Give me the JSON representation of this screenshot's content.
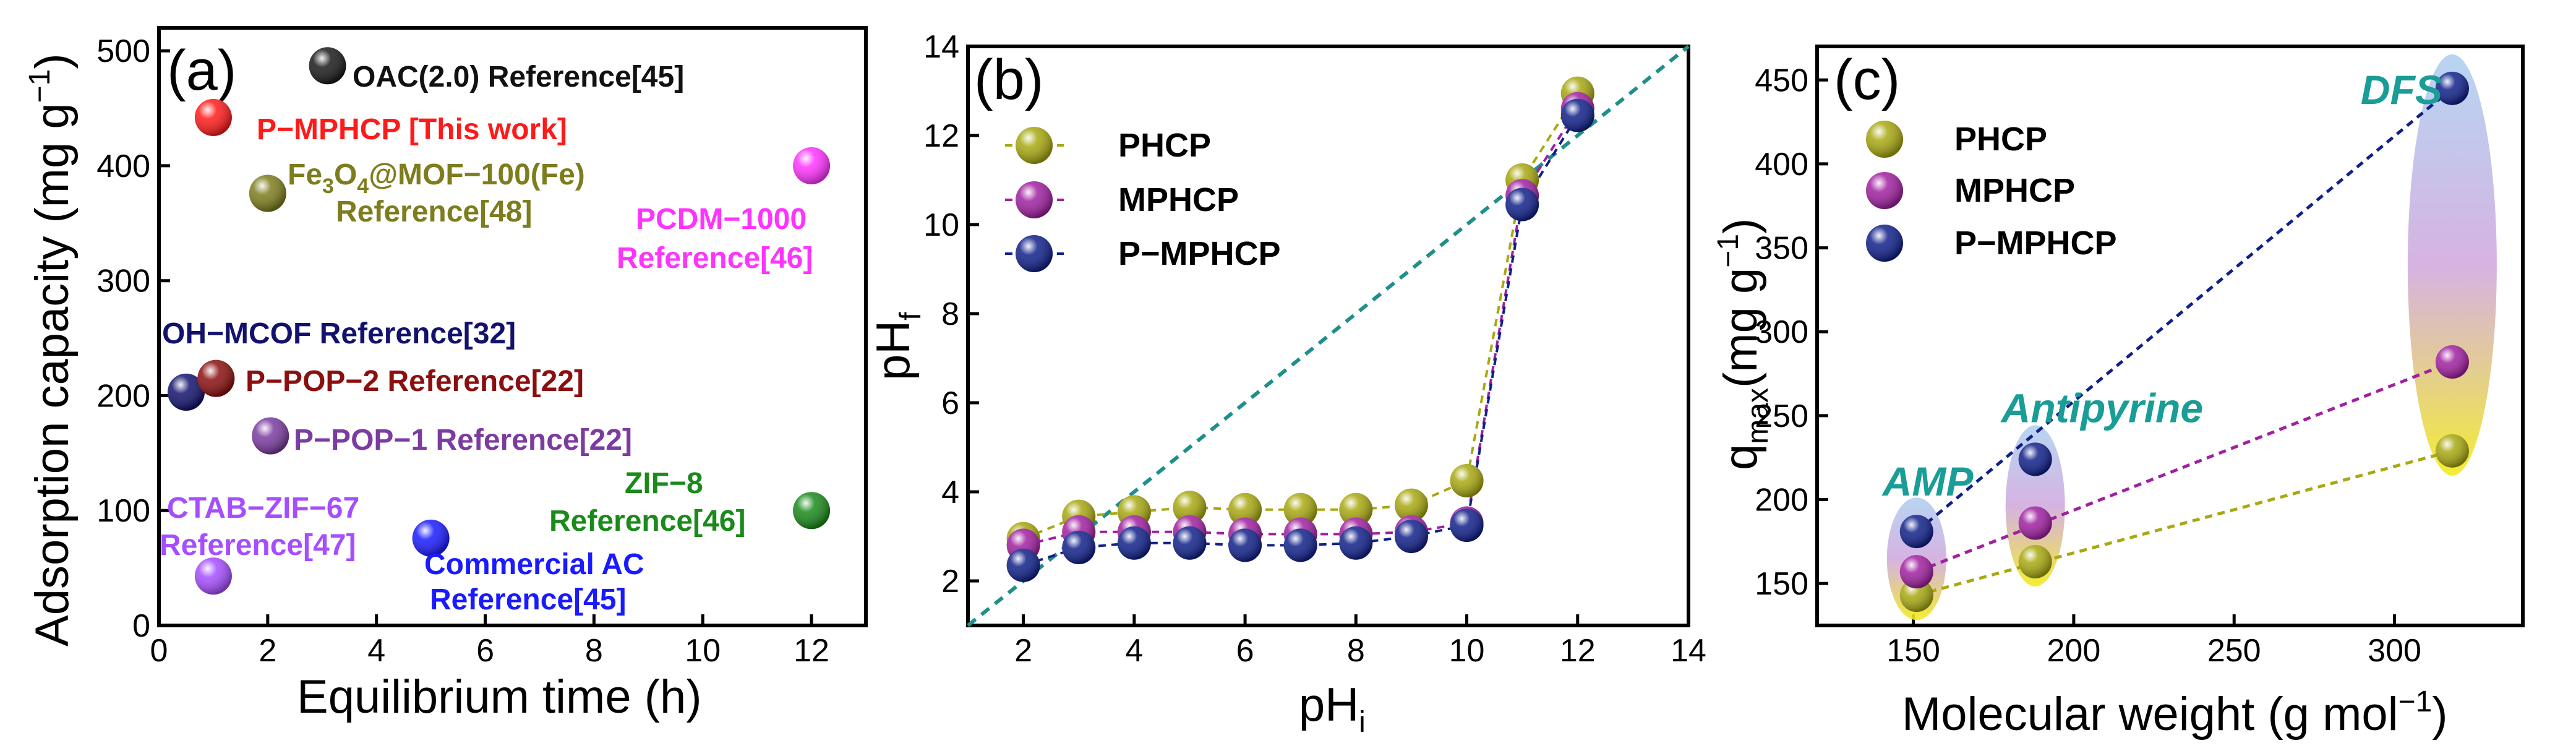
{
  "chart_data": [
    {
      "type": "scatter",
      "panel": "(a)",
      "xlabel": "Equilibrium time (h)",
      "ylabel": "Adsorption capacity (mg g",
      "ylabel_sup": "−1",
      "ylabel_close": ")",
      "xlim": [
        0,
        13
      ],
      "ylim": [
        0,
        520
      ],
      "xticks": [
        0,
        2,
        4,
        6,
        8,
        10,
        12
      ],
      "yticks": [
        0,
        100,
        200,
        300,
        400,
        500
      ],
      "points": [
        {
          "x": 3.1,
          "y": 487,
          "label": "OAC(2.0) Reference[45]",
          "color": "#1a1a1a"
        },
        {
          "x": 1.0,
          "y": 442,
          "label": "P−MPHCP [This work]",
          "color": "#ff1a1a"
        },
        {
          "x": 2.0,
          "y": 376,
          "label_main": "Fe",
          "label_sub1": "3",
          "label_mid": "O",
          "label_sub2": "4",
          "label_end": "@MOF−100(Fe)",
          "label_line2": "Reference[48]",
          "color": "#7d7d1e"
        },
        {
          "x": 12.0,
          "y": 400,
          "label": "PCDM−1000",
          "label_line2": "Reference[46]",
          "color": "#ff33ff"
        },
        {
          "x": 0.5,
          "y": 203,
          "label": "OH−MCOF Reference[32]",
          "color": "#12126e"
        },
        {
          "x": 1.05,
          "y": 215,
          "label": "P−POP−2 Reference[22]",
          "color": "#8b0f0f"
        },
        {
          "x": 2.05,
          "y": 165,
          "label": "P−POP−1 Reference[22]",
          "color": "#7b3ba0"
        },
        {
          "x": 1.0,
          "y": 43,
          "label": "CTAB−ZIF−67",
          "label_line2": "Reference[47]",
          "color": "#a64dff"
        },
        {
          "x": 5.0,
          "y": 76,
          "label": "Commercial AC",
          "label_line2": "Reference[45]",
          "color": "#1a1aff"
        },
        {
          "x": 12.0,
          "y": 100,
          "label": "ZIF−8",
          "label_line2": "Reference[46]",
          "color": "#1a8a1a"
        }
      ]
    },
    {
      "type": "line",
      "panel": "(b)",
      "xlabel": "pH",
      "xlabel_sub": "i",
      "ylabel": "pH",
      "ylabel_sub": "f",
      "xlim": [
        1,
        14
      ],
      "ylim": [
        1,
        14
      ],
      "xticks": [
        2,
        4,
        6,
        8,
        10,
        12,
        14
      ],
      "yticks": [
        2,
        4,
        6,
        8,
        10,
        12,
        14
      ],
      "x": [
        2,
        3,
        4,
        5,
        6,
        7,
        8,
        9,
        10,
        11,
        12
      ],
      "series": [
        {
          "name": "PHCP",
          "color": "#a8a810",
          "values": [
            2.95,
            3.45,
            3.55,
            3.65,
            3.6,
            3.6,
            3.6,
            3.7,
            4.25,
            11.0,
            12.95
          ]
        },
        {
          "name": "MPHCP",
          "color": "#a020a0",
          "values": [
            2.8,
            3.1,
            3.1,
            3.1,
            3.05,
            3.05,
            3.05,
            3.1,
            3.3,
            10.65,
            12.6
          ]
        },
        {
          "name": "P−MPHCP",
          "color": "#10208a",
          "values": [
            2.35,
            2.75,
            2.85,
            2.85,
            2.8,
            2.8,
            2.85,
            3.0,
            3.25,
            10.45,
            12.45
          ]
        }
      ],
      "reference_line": "y = x"
    },
    {
      "type": "scatter",
      "panel": "(c)",
      "xlabel": "Molecular weight (g mol",
      "xlabel_sup": "−1",
      "xlabel_close": ")",
      "ylabel": "q",
      "ylabel_sub": "max",
      "ylabel_unit": "(mg g",
      "ylabel_sup": "−1",
      "ylabel_close": ")",
      "xlim": [
        120,
        340
      ],
      "ylim": [
        125,
        470
      ],
      "xticks": [
        150,
        200,
        250,
        300
      ],
      "yticks": [
        150,
        200,
        250,
        300,
        350,
        400,
        450
      ],
      "categories": [
        "AMP",
        "Antipyrine",
        "DFS"
      ],
      "x": [
        151,
        188,
        318
      ],
      "series": [
        {
          "name": "PHCP",
          "color": "#a8a810",
          "values": [
            143,
            163,
            229
          ]
        },
        {
          "name": "MPHCP",
          "color": "#a020a0",
          "values": [
            157,
            186,
            282
          ]
        },
        {
          "name": "P−MPHCP",
          "color": "#10208a",
          "values": [
            181,
            224,
            445
          ]
        }
      ]
    }
  ]
}
